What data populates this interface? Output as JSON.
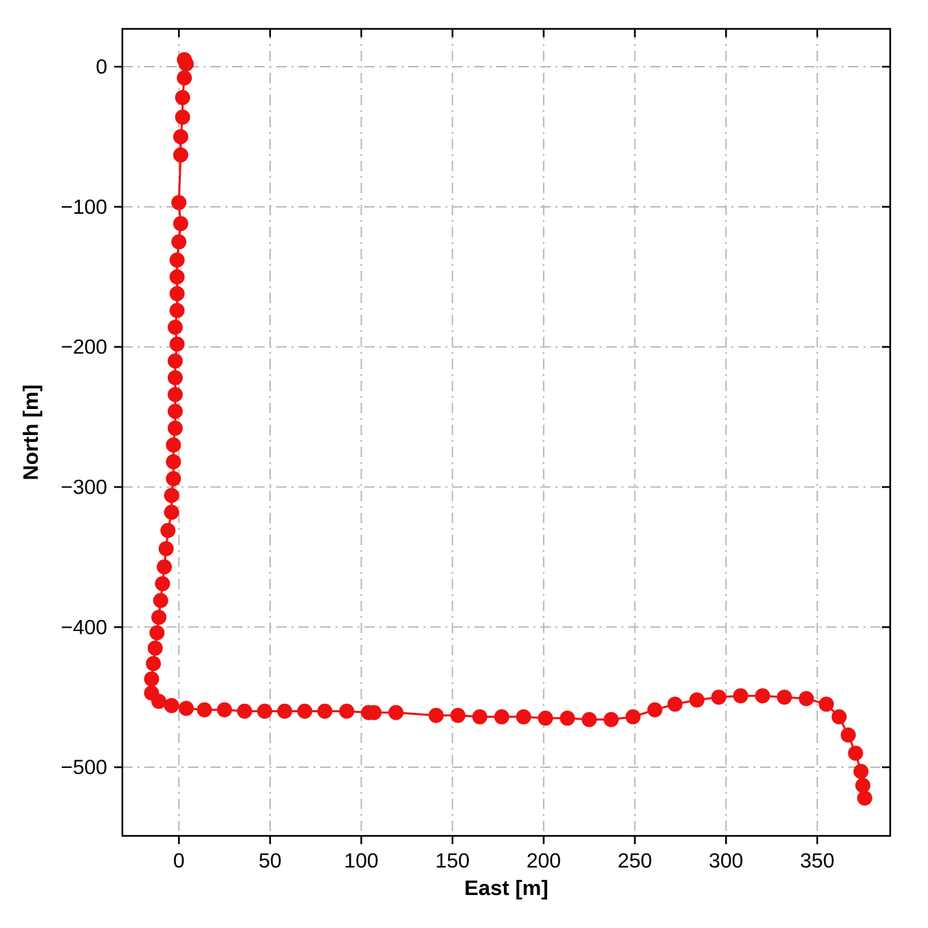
{
  "chart_data": {
    "type": "line",
    "title": "",
    "xlabel": "East [m]",
    "ylabel": "North [m]",
    "xlim": [
      -31,
      390
    ],
    "ylim": [
      -549,
      27
    ],
    "xticks": [
      0,
      50,
      100,
      150,
      200,
      250,
      300,
      350
    ],
    "yticks": [
      0,
      -100,
      -200,
      -300,
      -400,
      -500
    ],
    "grid": true,
    "grid_style": "dash-dot",
    "grid_color": "#b8b8b8",
    "line_color": "#ee1111",
    "marker_color": "#ee1111",
    "marker_radius": 11,
    "line_width": 3,
    "series_name": "trajectory",
    "points": [
      [
        4,
        2
      ],
      [
        3,
        5
      ],
      [
        3,
        -8
      ],
      [
        2,
        -22
      ],
      [
        2,
        -36
      ],
      [
        1,
        -50
      ],
      [
        1,
        -63
      ],
      [
        0,
        -97
      ],
      [
        1,
        -112
      ],
      [
        0,
        -125
      ],
      [
        -1,
        -138
      ],
      [
        -1,
        -150
      ],
      [
        -1,
        -162
      ],
      [
        -1,
        -174
      ],
      [
        -2,
        -186
      ],
      [
        -1,
        -198
      ],
      [
        -2,
        -210
      ],
      [
        -2,
        -222
      ],
      [
        -2,
        -234
      ],
      [
        -2,
        -246
      ],
      [
        -2,
        -258
      ],
      [
        -3,
        -270
      ],
      [
        -3,
        -282
      ],
      [
        -3,
        -294
      ],
      [
        -4,
        -306
      ],
      [
        -4,
        -318
      ],
      [
        -6,
        -331
      ],
      [
        -7,
        -344
      ],
      [
        -8,
        -357
      ],
      [
        -9,
        -369
      ],
      [
        -10,
        -381
      ],
      [
        -11,
        -393
      ],
      [
        -12,
        -404
      ],
      [
        -13,
        -415
      ],
      [
        -14,
        -426
      ],
      [
        -15,
        -437
      ],
      [
        -15,
        -447
      ],
      [
        -11,
        -453
      ],
      [
        -4,
        -456
      ],
      [
        4,
        -458
      ],
      [
        14,
        -459
      ],
      [
        25,
        -459
      ],
      [
        36,
        -460
      ],
      [
        47,
        -460
      ],
      [
        58,
        -460
      ],
      [
        69,
        -460
      ],
      [
        80,
        -460
      ],
      [
        92,
        -460
      ],
      [
        104,
        -461
      ],
      [
        107,
        -461
      ],
      [
        119,
        -461
      ],
      [
        141,
        -463
      ],
      [
        153,
        -463
      ],
      [
        165,
        -464
      ],
      [
        177,
        -464
      ],
      [
        189,
        -464
      ],
      [
        201,
        -465
      ],
      [
        213,
        -465
      ],
      [
        225,
        -466
      ],
      [
        237,
        -466
      ],
      [
        249,
        -464
      ],
      [
        261,
        -459
      ],
      [
        272,
        -455
      ],
      [
        284,
        -452
      ],
      [
        296,
        -450
      ],
      [
        308,
        -449
      ],
      [
        320,
        -449
      ],
      [
        332,
        -450
      ],
      [
        344,
        -451
      ],
      [
        355,
        -455
      ],
      [
        362,
        -464
      ],
      [
        367,
        -477
      ],
      [
        371,
        -490
      ],
      [
        374,
        -503
      ],
      [
        375,
        -513
      ],
      [
        376,
        -522
      ]
    ]
  }
}
